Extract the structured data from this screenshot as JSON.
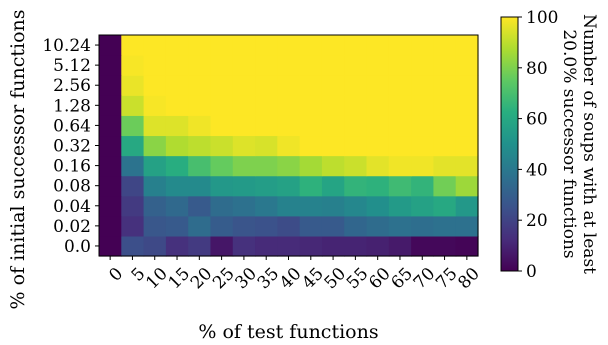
{
  "chart_data": {
    "type": "heatmap",
    "xlabel": "% of test functions",
    "ylabel": "% of initial successor functions",
    "x_categories": [
      "0",
      "5",
      "10",
      "15",
      "20",
      "25",
      "30",
      "35",
      "40",
      "45",
      "50",
      "55",
      "60",
      "65",
      "70",
      "75",
      "80"
    ],
    "y_categories": [
      "0.0",
      "0.02",
      "0.04",
      "0.08",
      "0.16",
      "0.32",
      "0.64",
      "1.28",
      "2.56",
      "5.12",
      "10.24"
    ],
    "colorbar": {
      "label": "Number of soups with at least 20.0% successor functions",
      "label_lines": [
        "Number of soups with at least",
        "20.0% successor functions"
      ],
      "ticks": [
        "0",
        "20",
        "40",
        "60",
        "80",
        "100"
      ],
      "range": [
        0,
        100
      ],
      "colormap": "viridis"
    },
    "values": [
      [
        0,
        24,
        22,
        14,
        17,
        6,
        14,
        12,
        12,
        11,
        10,
        10,
        9,
        7,
        2,
        2,
        1
      ],
      [
        0,
        14,
        27,
        28,
        35,
        29,
        26,
        25,
        23,
        28,
        28,
        33,
        35,
        37,
        36,
        37,
        37
      ],
      [
        0,
        17,
        31,
        34,
        28,
        35,
        37,
        40,
        44,
        44,
        43,
        46,
        49,
        54,
        57,
        60,
        53
      ],
      [
        0,
        21,
        43,
        47,
        47,
        53,
        54,
        55,
        57,
        64,
        58,
        65,
        64,
        68,
        65,
        78,
        85
      ],
      [
        0,
        38,
        57,
        62,
        70,
        76,
        80,
        80,
        82,
        86,
        90,
        92,
        96,
        98,
        98,
        96,
        96
      ],
      [
        0,
        60,
        82,
        88,
        90,
        92,
        95,
        94,
        98,
        100,
        100,
        100,
        100,
        100,
        100,
        100,
        100
      ],
      [
        0,
        77,
        95,
        95,
        98,
        100,
        100,
        100,
        100,
        100,
        100,
        100,
        100,
        100,
        100,
        100,
        100
      ],
      [
        0,
        92,
        99,
        100,
        100,
        100,
        100,
        100,
        100,
        100,
        100,
        100,
        100,
        100,
        100,
        100,
        100
      ],
      [
        0,
        97,
        100,
        100,
        100,
        100,
        100,
        100,
        100,
        100,
        100,
        100,
        100,
        100,
        100,
        100,
        100
      ],
      [
        0,
        99,
        100,
        100,
        100,
        100,
        100,
        100,
        100,
        100,
        100,
        100,
        100,
        100,
        100,
        100,
        100
      ],
      [
        0,
        100,
        100,
        100,
        100,
        100,
        100,
        100,
        100,
        100,
        100,
        100,
        100,
        100,
        100,
        100,
        100
      ]
    ]
  }
}
